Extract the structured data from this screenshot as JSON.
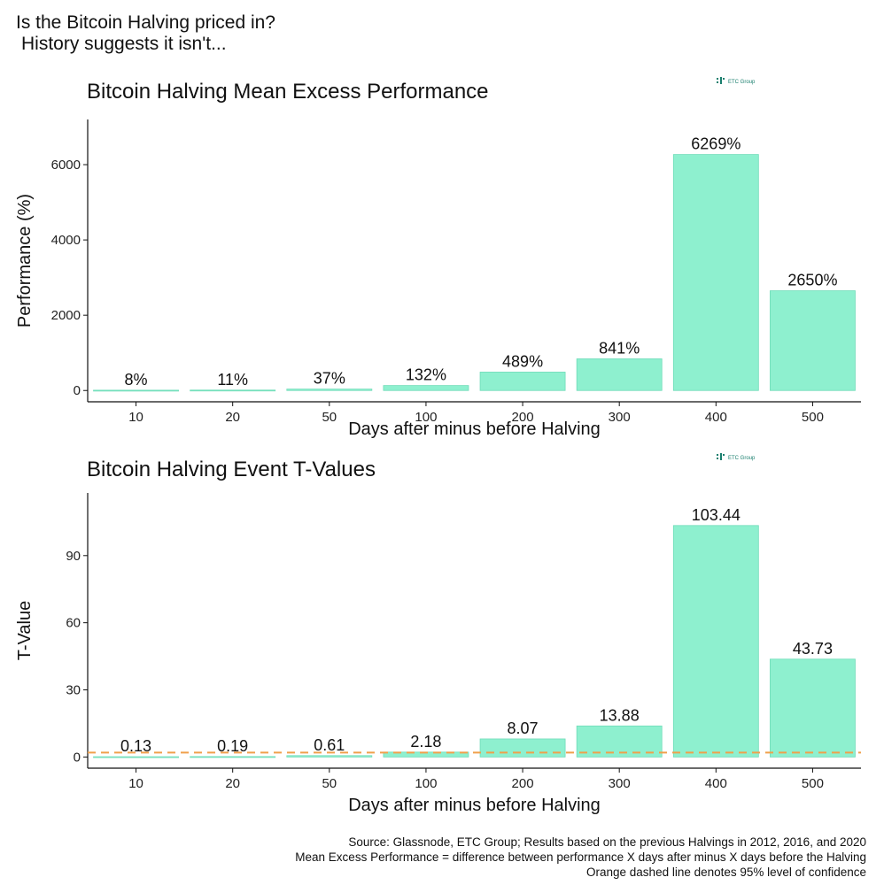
{
  "headline": {
    "line1": "Is the Bitcoin Halving priced in?",
    "line2": "History suggests it isn't..."
  },
  "logo_text": "ETC Group",
  "colors": {
    "bar": "#8ef0cf",
    "bar_stroke": "#6fdcb8",
    "threshold": "#f0a04b"
  },
  "chart_data": [
    {
      "type": "bar",
      "title": "Bitcoin Halving Mean Excess Performance",
      "xlabel": "Days after minus before Halving",
      "ylabel": "Performance (%)",
      "categories": [
        "10",
        "20",
        "50",
        "100",
        "200",
        "300",
        "400",
        "500"
      ],
      "values": [
        8,
        11,
        37,
        132,
        489,
        841,
        6269,
        2650
      ],
      "data_labels": [
        "8%",
        "11%",
        "37%",
        "132%",
        "489%",
        "841%",
        "6269%",
        "2650%"
      ],
      "ylim": [
        -300,
        7200
      ],
      "yticks": [
        0,
        2000,
        4000,
        6000
      ],
      "grid": false,
      "legend": "none"
    },
    {
      "type": "bar",
      "title": "Bitcoin Halving Event T-Values",
      "xlabel": "Days after minus before Halving",
      "ylabel": "T-Value",
      "categories": [
        "10",
        "20",
        "50",
        "100",
        "200",
        "300",
        "400",
        "500"
      ],
      "values": [
        0.13,
        0.19,
        0.61,
        2.18,
        8.07,
        13.88,
        103.44,
        43.73
      ],
      "data_labels": [
        "0.13",
        "0.19",
        "0.61",
        "2.18",
        "8.07",
        "13.88",
        "103.44",
        "43.73"
      ],
      "ylim": [
        -5,
        118
      ],
      "yticks": [
        0,
        30,
        60,
        90
      ],
      "threshold": 1.96,
      "grid": false,
      "legend": "none"
    }
  ],
  "source": {
    "line1": "Source: Glassnode, ETC Group; Results based on the previous Halvings in 2012, 2016, and 2020",
    "line2": "Mean Excess Performance = difference between performance X days after minus X days before the Halving",
    "line3": "Orange dashed line denotes 95% level of confidence"
  }
}
